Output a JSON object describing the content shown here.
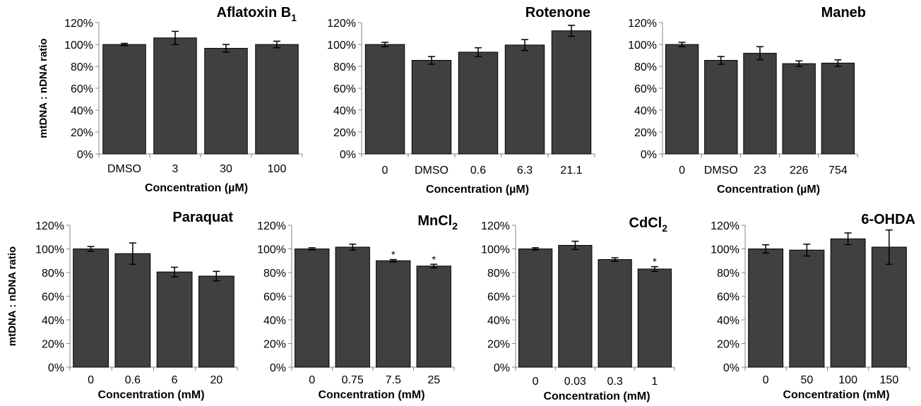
{
  "figure": {
    "ylabel_top": "mtDNA : nDNA ratio",
    "ylabel_bottom": "mtDNA : nDNA ratio",
    "bar_color": "#404040"
  },
  "chart_data": [
    {
      "type": "bar",
      "title": "Aflatoxin B",
      "title_sub": "1",
      "xlabel": "Concentration (µM)",
      "ylabel": "mtDNA : nDNA ratio",
      "categories": [
        "DMSO",
        "3",
        "30",
        "100"
      ],
      "values": [
        100,
        106,
        96.5,
        100
      ],
      "errors": [
        1,
        6,
        3.5,
        3
      ],
      "significant": [
        false,
        false,
        false,
        false
      ],
      "yticks": [
        "0%",
        "20%",
        "40%",
        "60%",
        "80%",
        "100%",
        "120%"
      ],
      "ylim": [
        0,
        120
      ]
    },
    {
      "type": "bar",
      "title": "Rotenone",
      "title_sub": "",
      "xlabel": "Concentration (µM)",
      "ylabel": "",
      "categories": [
        "0",
        "DMSO",
        "0.6",
        "6.3",
        "21.1"
      ],
      "values": [
        100,
        85.5,
        93,
        99.5,
        112.5
      ],
      "errors": [
        2,
        3.5,
        4,
        5,
        5
      ],
      "significant": [
        false,
        false,
        false,
        false,
        false
      ],
      "yticks": [
        "0%",
        "20%",
        "40%",
        "60%",
        "80%",
        "100%",
        "120%"
      ],
      "ylim": [
        0,
        120
      ]
    },
    {
      "type": "bar",
      "title": "Maneb",
      "title_sub": "",
      "xlabel": "Concentration (µM)",
      "ylabel": "",
      "categories": [
        "0",
        "DMSO",
        "23",
        "226",
        "754"
      ],
      "values": [
        100,
        85.5,
        92,
        82.5,
        83
      ],
      "errors": [
        2,
        3.5,
        6,
        2.5,
        3
      ],
      "significant": [
        false,
        false,
        false,
        false,
        false
      ],
      "yticks": [
        "0%",
        "20%",
        "40%",
        "60%",
        "80%",
        "100%",
        "120%"
      ],
      "ylim": [
        0,
        120
      ]
    },
    {
      "type": "bar",
      "title": "Paraquat",
      "title_sub": "",
      "xlabel": "Concentration (mM)",
      "ylabel": "mtDNA : nDNA ratio",
      "categories": [
        "0",
        "0.6",
        "6",
        "20"
      ],
      "values": [
        100,
        96,
        80.5,
        77
      ],
      "errors": [
        2,
        9,
        4,
        4
      ],
      "significant": [
        false,
        false,
        false,
        false
      ],
      "yticks": [
        "0%",
        "20%",
        "40%",
        "60%",
        "80%",
        "100%",
        "120%"
      ],
      "ylim": [
        0,
        120
      ]
    },
    {
      "type": "bar",
      "title": "MnCl",
      "title_sub": "2",
      "xlabel": "Concentration (mM)",
      "ylabel": "",
      "categories": [
        "0",
        "0.75",
        "7.5",
        "25"
      ],
      "values": [
        100,
        101.5,
        90,
        85.5
      ],
      "errors": [
        1,
        2.5,
        1,
        1.5
      ],
      "significant": [
        false,
        false,
        true,
        true
      ],
      "sig_marker": "*",
      "yticks": [
        "0%",
        "20%",
        "40%",
        "60%",
        "80%",
        "100%",
        "120%"
      ],
      "ylim": [
        0,
        120
      ]
    },
    {
      "type": "bar",
      "title": "CdCl",
      "title_sub": "2",
      "xlabel": "Concentration (mM)",
      "ylabel": "",
      "categories": [
        "0",
        "0.03",
        "0.3",
        "1"
      ],
      "values": [
        100,
        103,
        91,
        83
      ],
      "errors": [
        1,
        3.5,
        1.5,
        2
      ],
      "significant": [
        false,
        false,
        false,
        true
      ],
      "sig_marker": "*",
      "yticks": [
        "0%",
        "20%",
        "40%",
        "60%",
        "80%",
        "100%",
        "120%"
      ],
      "ylim": [
        0,
        120
      ]
    },
    {
      "type": "bar",
      "title": "6-OHDA",
      "title_sub": "",
      "xlabel": "Concentration (mM)",
      "ylabel": "",
      "categories": [
        "0",
        "50",
        "100",
        "150"
      ],
      "values": [
        100,
        99,
        108.5,
        101.5
      ],
      "errors": [
        3.5,
        5,
        5,
        14.5
      ],
      "significant": [
        false,
        false,
        false,
        false
      ],
      "yticks": [
        "0%",
        "20%",
        "40%",
        "60%",
        "80%",
        "100%",
        "120%"
      ],
      "ylim": [
        0,
        120
      ]
    }
  ]
}
